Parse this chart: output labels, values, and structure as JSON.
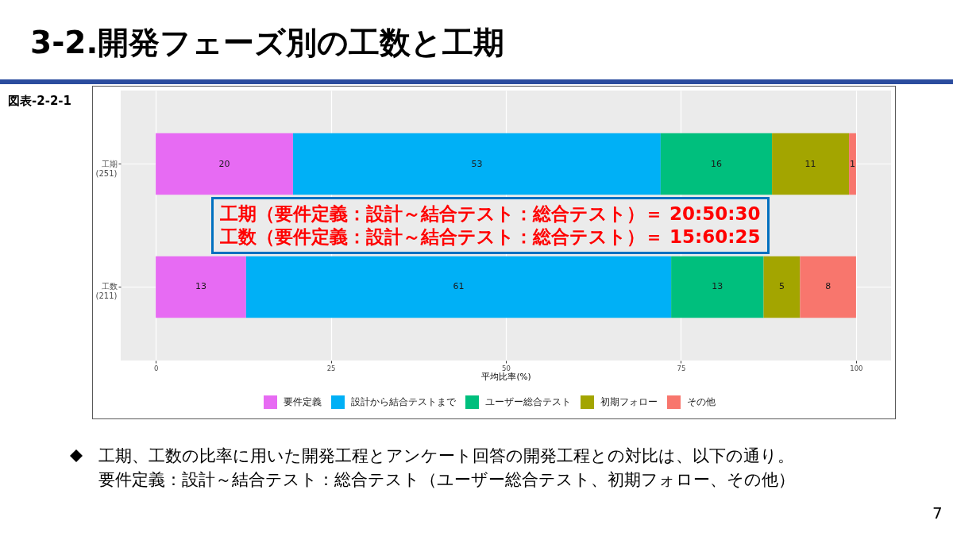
{
  "chart_data": {
    "type": "bar",
    "orientation": "horizontal",
    "stacked": true,
    "title": "3-2.開発フェーズ別の工数と工期",
    "subtitle": "図表-2-2-1",
    "xlabel": "平均比率(%)",
    "categories": [
      "工期\n(251)",
      "工数\n(211)"
    ],
    "series": [
      {
        "name": "要件定義",
        "color": "#e76bf3",
        "values": [
          19.6,
          12.9
        ],
        "value_labels": [
          "20",
          "13"
        ]
      },
      {
        "name": "設計から結合テストまで",
        "color": "#00b0f6",
        "values": [
          52.5,
          60.7
        ],
        "value_labels": [
          "53",
          "61"
        ]
      },
      {
        "name": "ユーザー総合テスト",
        "color": "#00bf7d",
        "values": [
          15.9,
          13.2
        ],
        "value_labels": [
          "16",
          "13"
        ]
      },
      {
        "name": "初期フォロー",
        "color": "#a3a500",
        "values": [
          11.0,
          5.2
        ],
        "value_labels": [
          "11",
          "5"
        ]
      },
      {
        "name": "その他",
        "color": "#f8766d",
        "values": [
          1.0,
          8.0
        ],
        "value_labels": [
          "1",
          "8"
        ]
      }
    ],
    "xlim": [
      -5,
      105
    ],
    "xticks": [
      0,
      25,
      50,
      75,
      100
    ],
    "grid": true,
    "legend": "bottom",
    "annotations": [
      "工期（要件定義：設計～結合テスト：総合テスト）＝ 20:50:30",
      "工数（要件定義：設計～結合テスト：総合テスト）＝ 15:60:25",
      "工期、工数の比率に用いた開発工程とアンケート回答の開発工程との対比は、以下の通り。",
      "要件定義：設計～結合テスト：総合テスト（ユーザー総合テスト、初期フォロー、その他）",
      "7"
    ]
  }
}
